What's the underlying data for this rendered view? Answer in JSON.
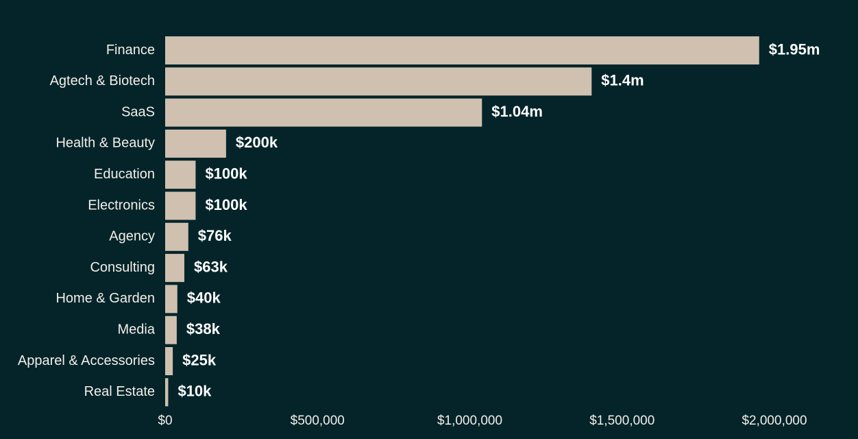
{
  "chart_data": {
    "type": "bar",
    "orientation": "horizontal",
    "title": "",
    "xlabel": "",
    "ylabel": "",
    "xlim": [
      0,
      2000000
    ],
    "grid": false,
    "legend": "none",
    "bar_color": "#cfc0b0",
    "background_color": "#04242a",
    "categories": [
      "Finance",
      "Agtech & Biotech",
      "SaaS",
      "Health & Beauty",
      "Education",
      "Electronics",
      "Agency",
      "Consulting",
      "Home & Garden",
      "Media",
      "Apparel & Accessories",
      "Real Estate"
    ],
    "values": [
      1950000,
      1400000,
      1040000,
      200000,
      100000,
      100000,
      76000,
      63000,
      40000,
      38000,
      25000,
      10000
    ],
    "data_labels": [
      "$1.95m",
      "$1.4m",
      "$1.04m",
      "$200k",
      "$100k",
      "$100k",
      "$76k",
      "$63k",
      "$40k",
      "$38k",
      "$25k",
      "$10k"
    ],
    "x_ticks": [
      0,
      500000,
      1000000,
      1500000,
      2000000
    ],
    "x_tick_labels": [
      "$0",
      "$500,000",
      "$1,000,000",
      "$1,500,000",
      "$2,000,000"
    ]
  }
}
